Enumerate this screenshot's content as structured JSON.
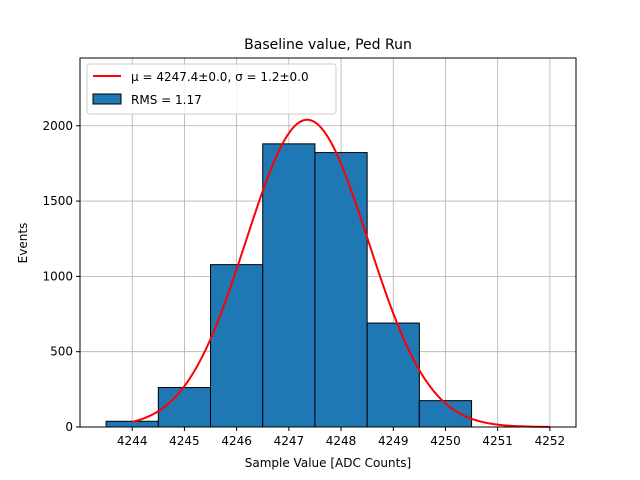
{
  "chart_data": {
    "type": "bar",
    "title": "Baseline value, Ped Run",
    "xlabel": "Sample Value [ADC Counts]",
    "ylabel": "Events",
    "xlim": [
      4243.0,
      4252.5
    ],
    "ylim": [
      0,
      2450
    ],
    "xticks": [
      4244,
      4245,
      4246,
      4247,
      4248,
      4249,
      4250,
      4251,
      4252
    ],
    "yticks": [
      0,
      500,
      1000,
      1500,
      2000
    ],
    "grid": true,
    "legend_position": "top-left",
    "histogram": {
      "name": "RMS = 1.17",
      "color": "#1f77b4",
      "bins": [
        {
          "start": 4243.5,
          "end": 4244.5,
          "count": 38
        },
        {
          "start": 4244.5,
          "end": 4245.5,
          "count": 262
        },
        {
          "start": 4245.5,
          "end": 4246.5,
          "count": 1078
        },
        {
          "start": 4246.5,
          "end": 4247.5,
          "count": 1880
        },
        {
          "start": 4247.5,
          "end": 4248.5,
          "count": 1822
        },
        {
          "start": 4248.5,
          "end": 4249.5,
          "count": 690
        },
        {
          "start": 4249.5,
          "end": 4250.5,
          "count": 175
        }
      ]
    },
    "fit": {
      "name": "μ = 4247.4±0.0, σ = 1.2±0.0",
      "color": "#ff0000",
      "mu": 4247.35,
      "sigma": 1.17,
      "amplitude": 2040,
      "x_range": [
        4244.0,
        4252.0
      ]
    }
  }
}
